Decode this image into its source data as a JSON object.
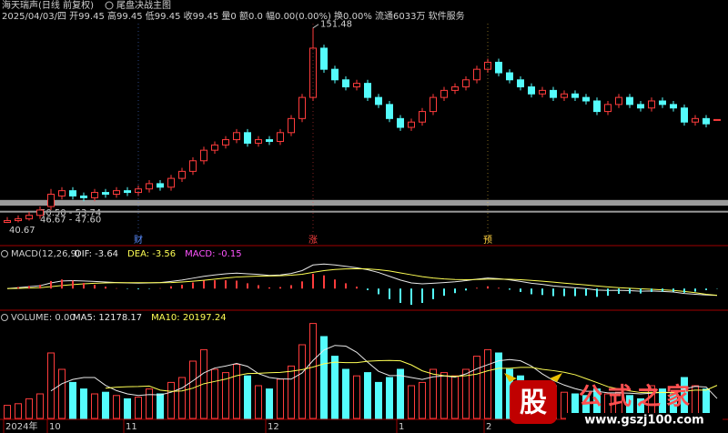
{
  "header": {
    "stock": "海天瑞声(日线 前复权)",
    "info": "2025/04/03/四 开99.45 高99.45 低99.45 收99.45 量0 额0.0 幅0.00(0.00%) 换0.00% 流通6033万 软件服务"
  },
  "chart_data": [
    {
      "type": "candlestick",
      "title": "尾盘决战主图",
      "up_color": "#ff3c3c",
      "down_color": "#54fcfc",
      "ylim": [
        34,
        156
      ],
      "open": [
        41,
        42,
        43,
        45,
        50,
        56,
        59,
        56,
        55,
        58,
        57,
        59,
        58,
        60,
        63,
        61,
        66,
        70,
        76,
        82,
        85,
        88,
        92,
        86,
        88,
        87,
        92,
        100,
        112,
        140,
        128,
        122,
        118,
        120,
        112,
        108,
        100,
        95,
        98,
        104,
        112,
        116,
        118,
        122,
        128,
        132,
        126,
        122,
        118,
        114,
        116,
        112,
        114,
        112,
        110,
        104,
        108,
        112,
        108,
        106,
        110,
        108,
        106,
        98,
        100,
        99.45
      ],
      "high": [
        44,
        45,
        47,
        50,
        60,
        61,
        61,
        58,
        60,
        60,
        61,
        61,
        62,
        65,
        65,
        68,
        72,
        78,
        84,
        87,
        90,
        94,
        94,
        90,
        90,
        94,
        102,
        114,
        151.48,
        142,
        130,
        124,
        122,
        122,
        114,
        110,
        102,
        100,
        106,
        114,
        118,
        120,
        124,
        130,
        134,
        134,
        128,
        124,
        120,
        118,
        118,
        116,
        116,
        114,
        112,
        110,
        114,
        114,
        110,
        112,
        112,
        110,
        108,
        102,
        102,
        99.45
      ],
      "low": [
        40.67,
        41,
        42,
        43,
        48,
        54,
        54,
        53,
        53,
        55,
        55,
        56,
        56,
        58,
        59,
        59,
        64,
        68,
        74,
        80,
        83,
        86,
        84,
        84,
        85,
        85,
        90,
        98,
        110,
        126,
        120,
        116,
        116,
        110,
        106,
        98,
        93,
        93,
        96,
        102,
        110,
        114,
        116,
        120,
        126,
        124,
        120,
        116,
        112,
        112,
        110,
        110,
        110,
        108,
        102,
        102,
        106,
        106,
        104,
        104,
        106,
        104,
        96,
        96,
        95,
        99.45
      ],
      "close": [
        42,
        43,
        45,
        48,
        57,
        59,
        56,
        55,
        58,
        57,
        59,
        58,
        60,
        63,
        61,
        66,
        70,
        76,
        82,
        85,
        88,
        92,
        86,
        88,
        87,
        92,
        100,
        112,
        140,
        128,
        122,
        118,
        120,
        112,
        108,
        100,
        95,
        98,
        104,
        112,
        116,
        118,
        122,
        128,
        132,
        126,
        122,
        118,
        114,
        116,
        112,
        114,
        112,
        110,
        104,
        108,
        112,
        108,
        106,
        110,
        108,
        106,
        98,
        100,
        97,
        99.45
      ],
      "zones": [
        {
          "label": "50.50 - 53.74",
          "range": [
            50.5,
            53.74
          ]
        },
        {
          "label": "46.67 - 47.60",
          "range": [
            46.67,
            47.6
          ]
        }
      ],
      "events": [
        null,
        null,
        null,
        null,
        null,
        null,
        null,
        null,
        null,
        null,
        null,
        null,
        {
          "label": "财",
          "color": "#5a8cff"
        },
        null,
        null,
        null,
        null,
        null,
        null,
        null,
        null,
        null,
        null,
        null,
        null,
        null,
        null,
        null,
        {
          "label": "涨",
          "color": "#ff4040"
        },
        null,
        null,
        null,
        null,
        null,
        null,
        null,
        null,
        null,
        null,
        null,
        null,
        null,
        null,
        null,
        {
          "label": "预",
          "color": "#ffd040"
        },
        null,
        null,
        null,
        null,
        null,
        null,
        null,
        null,
        null,
        null,
        null,
        null,
        null,
        null,
        null,
        null,
        null,
        null,
        null,
        null,
        null
      ]
    },
    {
      "type": "macd",
      "title": "MACD(12,26,9)",
      "ylim": [
        -10,
        16
      ],
      "series": [
        {
          "name": "DIF: -3.64",
          "color": "#e8e8e8",
          "values": [
            0,
            0.5,
            1,
            1.5,
            3,
            4,
            4.2,
            4,
            3.8,
            3.5,
            3.2,
            3,
            2.9,
            3,
            3.2,
            3.8,
            4.5,
            5.5,
            6.5,
            7.2,
            7.8,
            8.2,
            7.8,
            7.5,
            7,
            7.2,
            8,
            9.5,
            12.5,
            13,
            12.5,
            11.8,
            11,
            10,
            8.5,
            6.5,
            4.5,
            3,
            2.5,
            2.8,
            3.2,
            3.6,
            4.2,
            5,
            5.6,
            5.2,
            4.6,
            3.8,
            2.8,
            2.2,
            1.4,
            0.9,
            0.4,
            0,
            -0.8,
            -1,
            -0.9,
            -1.1,
            -1.4,
            -1.3,
            -1.5,
            -1.8,
            -2.6,
            -3,
            -3.4,
            -3.64
          ]
        },
        {
          "name": "DEA: -3.56",
          "color": "#ffff54",
          "values": [
            0,
            0.1,
            0.3,
            0.5,
            1,
            1.6,
            2.1,
            2.5,
            2.8,
            3,
            3.1,
            3.1,
            3.1,
            3.1,
            3.1,
            3.2,
            3.5,
            3.9,
            4.4,
            5,
            5.6,
            6.1,
            6.4,
            6.6,
            6.7,
            6.8,
            7.1,
            7.6,
            8.6,
            9.5,
            10.1,
            10.4,
            10.5,
            10.4,
            10,
            9.3,
            8.3,
            7.3,
            6.3,
            5.6,
            5.1,
            4.8,
            4.7,
            4.8,
            5,
            5,
            4.9,
            4.7,
            4.3,
            3.9,
            3.4,
            2.9,
            2.4,
            1.9,
            1.4,
            0.9,
            0.5,
            0.2,
            -0.1,
            -0.4,
            -0.7,
            -1,
            -1.5,
            -2.2,
            -3,
            -3.56
          ]
        },
        {
          "name": "MACD: -0.15",
          "color": "#ff54ff",
          "up_color": "#ff3c3c",
          "down_color": "#54fcfc",
          "values": [
            0,
            0.8,
            1.4,
            2,
            4,
            4.8,
            4.2,
            3,
            2,
            1,
            0.2,
            -0.2,
            -0.4,
            -0.2,
            0.2,
            1.2,
            2,
            3.2,
            4.2,
            4.4,
            4.4,
            4.2,
            2.8,
            1.8,
            0.6,
            0.8,
            1.8,
            3.8,
            7.8,
            7,
            4.8,
            2.8,
            1,
            -0.8,
            -3,
            -5.6,
            -7.6,
            -8.6,
            -7.6,
            -5.6,
            -3.8,
            -2.4,
            -1,
            0.4,
            1.2,
            0.4,
            -0.6,
            -1.8,
            -3,
            -3.4,
            -4,
            -4,
            -4,
            -3.8,
            -4.4,
            -3.8,
            -2.8,
            -2.6,
            -2.6,
            -1.8,
            -1.6,
            -1.6,
            -2.2,
            -1.6,
            -0.8,
            -0.15
          ]
        }
      ]
    },
    {
      "type": "volume",
      "title": "VOLUME: 0.00",
      "ylim": [
        0,
        60000
      ],
      "up_color": "#ff3c3c",
      "down_color": "#54fcfc",
      "categories": [
        "2024年",
        null,
        null,
        null,
        "10",
        null,
        null,
        null,
        null,
        null,
        null,
        "11",
        null,
        null,
        null,
        null,
        null,
        null,
        null,
        null,
        null,
        null,
        null,
        null,
        "12",
        null,
        null,
        null,
        null,
        null,
        null,
        null,
        null,
        null,
        null,
        null,
        "1",
        null,
        null,
        null,
        null,
        null,
        null,
        null,
        "2",
        null,
        null,
        null,
        null,
        null,
        null,
        null,
        null,
        null,
        null,
        null,
        null,
        null,
        null,
        null,
        null,
        null,
        null,
        null,
        null,
        null
      ],
      "values": [
        8000,
        9000,
        12000,
        15000,
        40000,
        30000,
        22000,
        18000,
        15000,
        16000,
        14000,
        12000,
        13000,
        18000,
        15000,
        22000,
        25000,
        35000,
        42000,
        30000,
        28000,
        33000,
        26000,
        20000,
        18000,
        24000,
        32000,
        45000,
        58000,
        50000,
        38000,
        30000,
        26000,
        28000,
        22000,
        25000,
        30000,
        20000,
        22000,
        30000,
        28000,
        26000,
        30000,
        38000,
        42000,
        40000,
        30000,
        26000,
        22000,
        18000,
        20000,
        16000,
        15000,
        14000,
        18000,
        15000,
        16000,
        14000,
        12000,
        20000,
        18000,
        15000,
        25000,
        20000,
        18000,
        0
      ],
      "series": [
        {
          "name": "MA5: 12178.17",
          "color": "#e8e8e8",
          "values": [
            null,
            null,
            null,
            null,
            16800,
            21200,
            23800,
            25000,
            25000,
            20200,
            17000,
            15000,
            14000,
            14600,
            14400,
            16000,
            18600,
            23000,
            27800,
            30800,
            32000,
            33600,
            31800,
            27400,
            25000,
            24200,
            24000,
            27800,
            35400,
            41800,
            44600,
            44200,
            40400,
            34400,
            28800,
            26200,
            26200,
            25000,
            23800,
            25400,
            26000,
            25200,
            27200,
            30400,
            32800,
            35200,
            36000,
            35200,
            32000,
            27200,
            23200,
            20400,
            18200,
            16600,
            16600,
            15600,
            15600,
            15400,
            15000,
            15400,
            16000,
            15800,
            18000,
            19600,
            19200,
            12178.17
          ]
        },
        {
          "name": "MA10: 20197.24",
          "color": "#ffff54",
          "values": [
            null,
            null,
            null,
            null,
            null,
            null,
            null,
            null,
            null,
            18500,
            19100,
            19400,
            19500,
            19800,
            17300,
            16500,
            16800,
            18500,
            21200,
            22600,
            24000,
            26100,
            27400,
            27600,
            27900,
            28100,
            28800,
            29800,
            31400,
            33400,
            34400,
            34100,
            34100,
            34900,
            35300,
            35400,
            35200,
            32700,
            29100,
            27100,
            26100,
            25700,
            26100,
            27100,
            29100,
            30600,
            30600,
            31200,
            31200,
            30000,
            29200,
            28200,
            26700,
            24300,
            21900,
            19400,
            18000,
            16800,
            15800,
            16000,
            15800,
            15700,
            16700,
            17300,
            17300,
            20197.24
          ]
        }
      ]
    }
  ],
  "watermark": {
    "logo": "股",
    "name": "公式之家",
    "url": "www.gszj100.com"
  }
}
